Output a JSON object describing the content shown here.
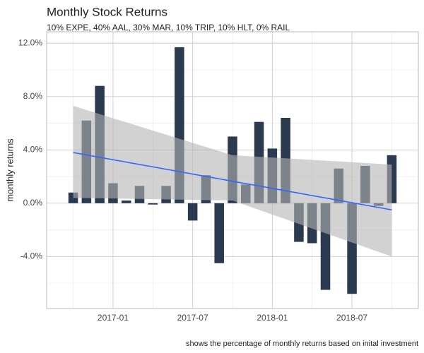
{
  "chart_data": {
    "type": "bar",
    "title": "Monthly Stock Returns",
    "subtitle": "10% EXPE, 40% AAL, 30% MAR, 10% TRIP, 10% HLT, 0% RAIL",
    "caption": "shows the percentage of monthly returns based on inital investment",
    "y_label": "monthly returns",
    "x": [
      "2016-10",
      "2016-11",
      "2016-12",
      "2017-01",
      "2017-02",
      "2017-03",
      "2017-04",
      "2017-05",
      "2017-06",
      "2017-07",
      "2017-08",
      "2017-09",
      "2017-10",
      "2017-11",
      "2017-12",
      "2018-01",
      "2018-02",
      "2018-03",
      "2018-04",
      "2018-05",
      "2018-06",
      "2018-07",
      "2018-08",
      "2018-09",
      "2018-10"
    ],
    "values": [
      0.8,
      6.2,
      8.8,
      1.5,
      0.2,
      1.3,
      -0.1,
      1.3,
      11.7,
      -1.3,
      2.1,
      -4.5,
      5.0,
      1.4,
      6.1,
      4.1,
      6.4,
      -2.9,
      -3.0,
      -6.5,
      2.6,
      -6.8,
      2.8,
      -0.2,
      3.6
    ],
    "color": "#2b3a4f",
    "trend": {
      "x": [
        "2016-10",
        "2017-10",
        "2018-10"
      ],
      "values": [
        3.8,
        1.65,
        -0.5
      ],
      "upper": [
        7.3,
        3.6,
        2.9
      ],
      "lower": [
        0.4,
        0.2,
        -4.0
      ],
      "color": "#3366ff",
      "band_color": "#b4b4b4"
    },
    "xlim": [
      "2016-08",
      "2018-12"
    ],
    "xticks": [
      "2017-01",
      "2017-07",
      "2018-01",
      "2018-07"
    ],
    "xminor": [
      "2016-10",
      "2017-04",
      "2017-10",
      "2018-04",
      "2018-10"
    ],
    "ylim": [
      -7.9,
      12.86
    ],
    "yticks": [
      {
        "value": -4,
        "label": "-4.0%"
      },
      {
        "value": 0,
        "label": "0.0%"
      },
      {
        "value": 4,
        "label": "4.0%"
      },
      {
        "value": 8,
        "label": "8.0%"
      },
      {
        "value": 12,
        "label": "12.0%"
      }
    ],
    "yminor": [
      -6,
      -2,
      2,
      6,
      10
    ],
    "grid": true
  }
}
